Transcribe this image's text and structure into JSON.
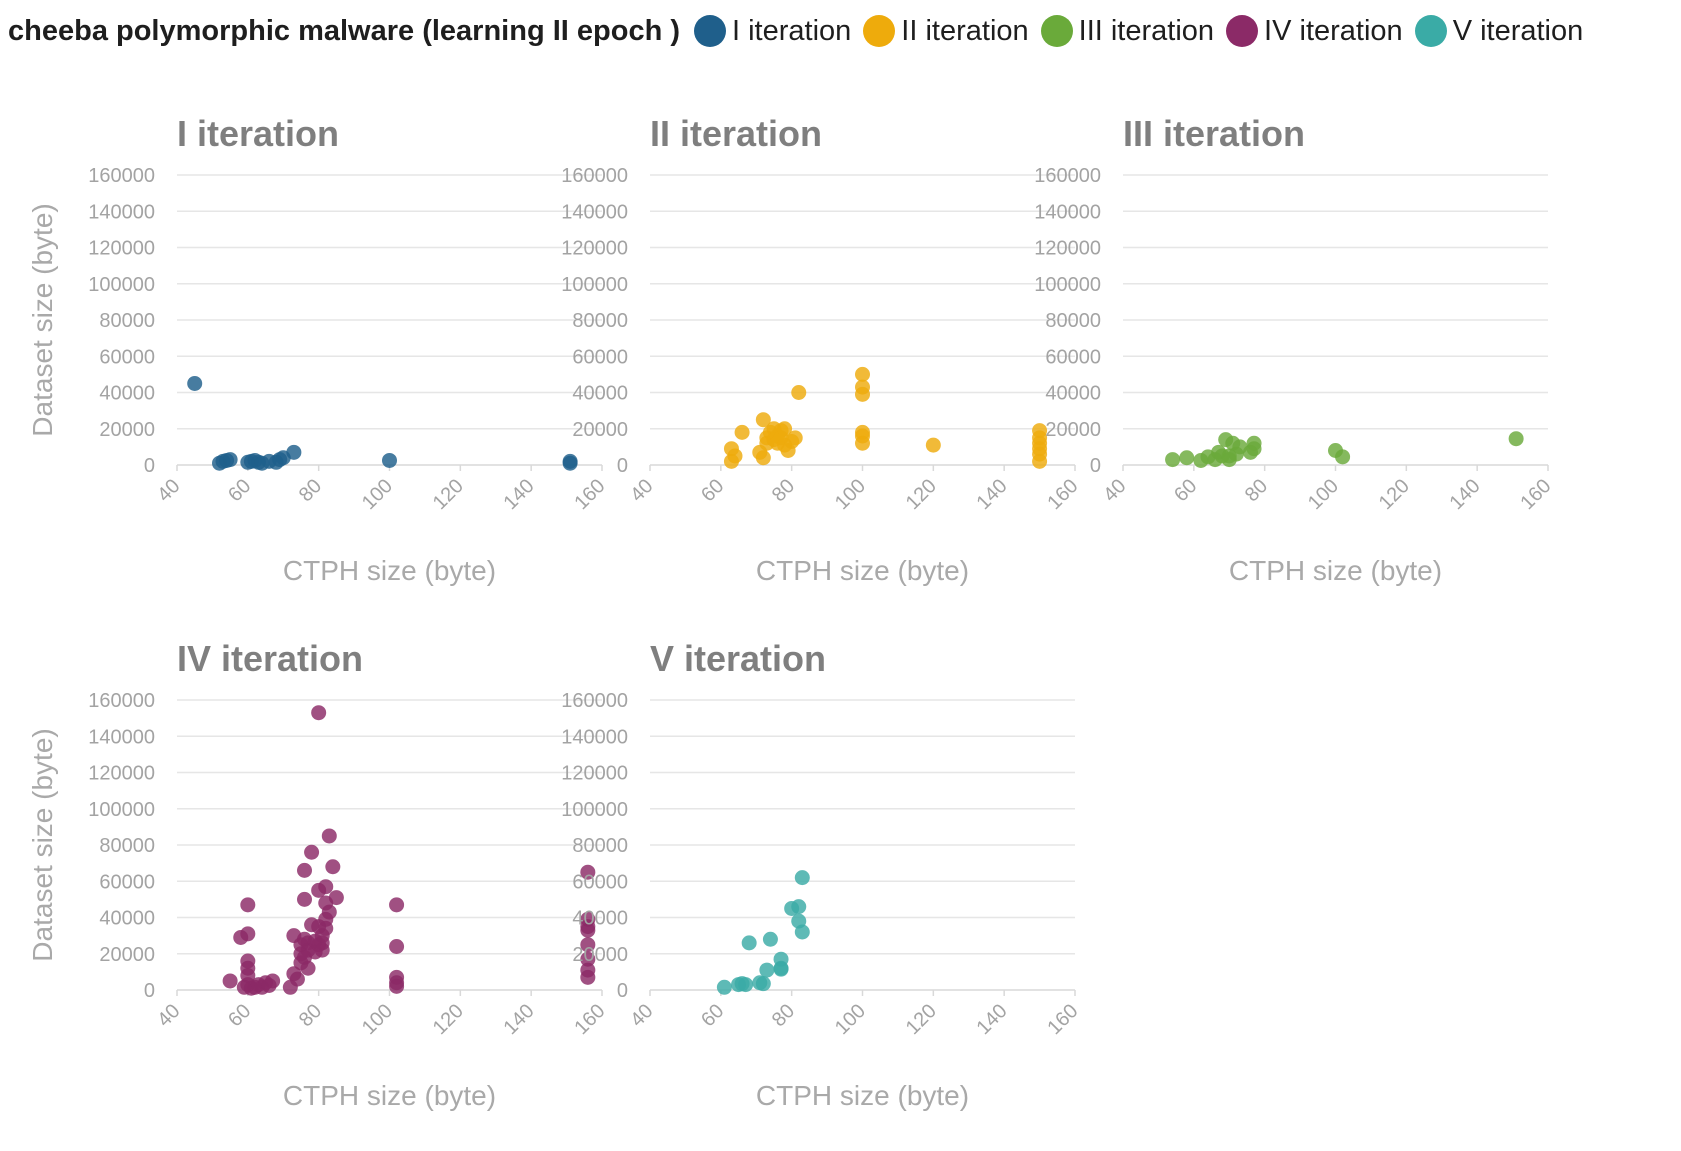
{
  "header": {
    "title": "cheeba polymorphic malware (learning II epoch )"
  },
  "legend": [
    {
      "label": "I iteration",
      "color": "#1f5f8b"
    },
    {
      "label": "II iteration",
      "color": "#eeab0c"
    },
    {
      "label": "III iteration",
      "color": "#6aaa3a"
    },
    {
      "label": "IV iteration",
      "color": "#8b2a67"
    },
    {
      "label": "V iteration",
      "color": "#3aaba6"
    }
  ],
  "chart_data": [
    {
      "type": "scatter",
      "title": "I iteration",
      "xlabel": "CTPH size (byte)",
      "ylabel": "Dataset size (byte)",
      "xlim": [
        40,
        160
      ],
      "ylim": [
        0,
        160000
      ],
      "xticks": [
        40,
        60,
        80,
        100,
        120,
        140,
        160
      ],
      "yticks": [
        0,
        20000,
        40000,
        60000,
        80000,
        100000,
        120000,
        140000,
        160000
      ],
      "grid": true,
      "color": "#1f5f8b",
      "x": [
        45,
        52,
        53,
        54,
        55,
        60,
        61,
        62,
        63,
        64,
        66,
        68,
        69,
        70,
        73,
        100,
        151,
        151
      ],
      "y": [
        45000,
        1000,
        2000,
        2500,
        3000,
        1500,
        2000,
        2500,
        1500,
        1000,
        2000,
        1500,
        3000,
        4000,
        7000,
        2500,
        1000,
        2000
      ]
    },
    {
      "type": "scatter",
      "title": "II iteration",
      "xlabel": "CTPH size (byte)",
      "ylabel": "",
      "xlim": [
        40,
        160
      ],
      "ylim": [
        0,
        160000
      ],
      "xticks": [
        40,
        60,
        80,
        100,
        120,
        140,
        160
      ],
      "yticks": [
        0,
        20000,
        40000,
        60000,
        80000,
        100000,
        120000,
        140000,
        160000
      ],
      "grid": true,
      "color": "#eeab0c",
      "x": [
        63,
        63,
        64,
        66,
        71,
        72,
        72,
        73,
        73,
        74,
        75,
        75,
        76,
        76,
        77,
        77,
        78,
        78,
        79,
        80,
        81,
        82,
        100,
        100,
        100,
        100,
        100,
        100,
        120,
        150,
        150,
        150,
        150,
        150,
        150
      ],
      "y": [
        9000,
        2000,
        5000,
        18000,
        7000,
        25000,
        4000,
        15000,
        12000,
        18000,
        20000,
        14000,
        16000,
        12000,
        19000,
        15000,
        20000,
        11000,
        8000,
        13000,
        15000,
        40000,
        50000,
        43000,
        39000,
        18000,
        16000,
        12000,
        11000,
        19000,
        15000,
        12000,
        9000,
        6000,
        2000
      ]
    },
    {
      "type": "scatter",
      "title": "III iteration",
      "xlabel": "CTPH size (byte)",
      "ylabel": "",
      "xlim": [
        40,
        160
      ],
      "ylim": [
        0,
        160000
      ],
      "xticks": [
        40,
        60,
        80,
        100,
        120,
        140,
        160
      ],
      "yticks": [
        0,
        20000,
        40000,
        60000,
        80000,
        100000,
        120000,
        140000,
        160000
      ],
      "grid": true,
      "color": "#6aaa3a",
      "x": [
        54,
        58,
        62,
        64,
        66,
        67,
        68,
        69,
        70,
        70,
        71,
        72,
        73,
        76,
        77,
        77,
        100,
        102,
        151
      ],
      "y": [
        3000,
        4000,
        2500,
        4500,
        3000,
        7000,
        5000,
        14000,
        5000,
        3000,
        12000,
        6000,
        10000,
        7000,
        9000,
        12000,
        8000,
        4500,
        14500
      ]
    },
    {
      "type": "scatter",
      "title": "IV iteration",
      "xlabel": "CTPH size (byte)",
      "ylabel": "Dataset size (byte)",
      "xlim": [
        40,
        160
      ],
      "ylim": [
        0,
        160000
      ],
      "xticks": [
        40,
        60,
        80,
        100,
        120,
        140,
        160
      ],
      "yticks": [
        0,
        20000,
        40000,
        60000,
        80000,
        100000,
        120000,
        140000,
        160000
      ],
      "grid": true,
      "color": "#8b2a67",
      "x": [
        55,
        58,
        59,
        60,
        60,
        60,
        60,
        60,
        60,
        61,
        62,
        63,
        64,
        65,
        66,
        67,
        72,
        73,
        73,
        74,
        75,
        75,
        75,
        76,
        76,
        76,
        76,
        77,
        77,
        77,
        78,
        78,
        79,
        79,
        80,
        80,
        80,
        80,
        81,
        81,
        81,
        82,
        82,
        82,
        82,
        83,
        83,
        84,
        85,
        102,
        102,
        102,
        102,
        102,
        156,
        156,
        156,
        156,
        156,
        156,
        156,
        156
      ],
      "y": [
        5000,
        29000,
        1500,
        47000,
        31000,
        16000,
        12000,
        8000,
        3000,
        1000,
        1500,
        3000,
        1500,
        4000,
        2500,
        5000,
        1500,
        30000,
        9000,
        6000,
        25000,
        20000,
        15000,
        66000,
        50000,
        28000,
        18000,
        12000,
        26000,
        22000,
        76000,
        36000,
        27000,
        21000,
        153000,
        55000,
        35000,
        25000,
        30000,
        26000,
        22000,
        57000,
        48000,
        39000,
        34000,
        85000,
        43000,
        68000,
        51000,
        47000,
        24000,
        7000,
        4000,
        2000,
        65000,
        39000,
        35000,
        33000,
        25000,
        17000,
        11000,
        7000
      ]
    },
    {
      "type": "scatter",
      "title": "V iteration",
      "xlabel": "CTPH size (byte)",
      "ylabel": "",
      "xlim": [
        40,
        160
      ],
      "ylim": [
        0,
        160000
      ],
      "xticks": [
        40,
        60,
        80,
        100,
        120,
        140,
        160
      ],
      "yticks": [
        0,
        20000,
        40000,
        60000,
        80000,
        100000,
        120000,
        140000,
        160000
      ],
      "grid": true,
      "color": "#3aaba6",
      "x": [
        61,
        65,
        66,
        67,
        68,
        71,
        72,
        73,
        74,
        77,
        77,
        77,
        80,
        82,
        82,
        83,
        83
      ],
      "y": [
        1500,
        3000,
        3500,
        3000,
        26000,
        4000,
        3500,
        11000,
        28000,
        12000,
        17000,
        11500,
        45000,
        46000,
        38000,
        32000,
        62000
      ]
    }
  ]
}
